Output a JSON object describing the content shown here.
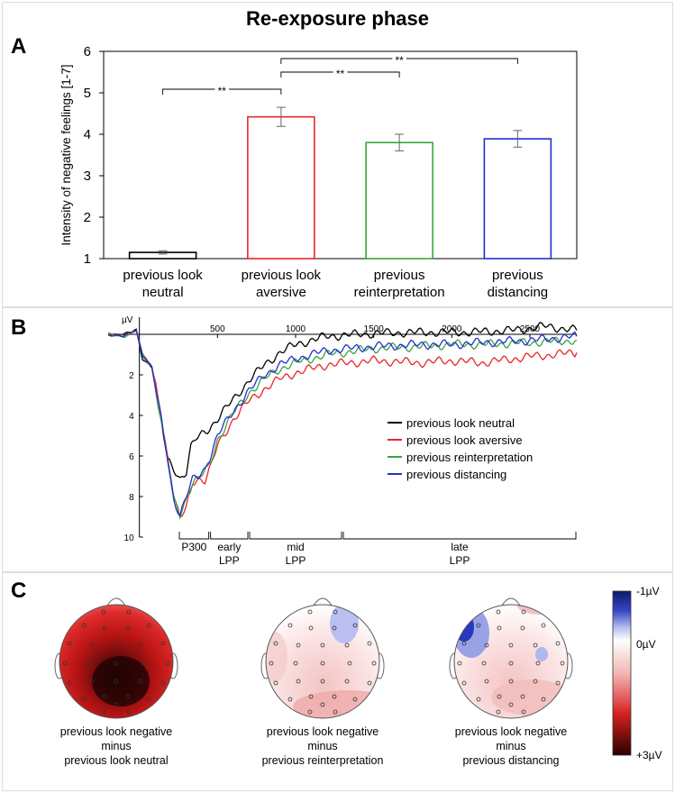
{
  "title": "Re-exposure phase",
  "panels": {
    "a": "A",
    "b": "B",
    "c": "C"
  },
  "panel_a": {
    "chart_data": {
      "type": "bar",
      "categories": [
        [
          "previous look",
          "neutral"
        ],
        [
          "previous look",
          "aversive"
        ],
        [
          "previous",
          "reinterpretation"
        ],
        [
          "previous",
          "distancing"
        ]
      ],
      "values": [
        1.15,
        4.42,
        3.8,
        3.89
      ],
      "errors": [
        0.04,
        0.23,
        0.2,
        0.2
      ],
      "colors": [
        "#000000",
        "#e8262a",
        "#3aa63a",
        "#2230d0"
      ],
      "ylabel": "Intensity of negative feelings [1-7]",
      "ylim": [
        1,
        6
      ],
      "yticks": [
        "1",
        "2",
        "3",
        "4",
        "5",
        "6"
      ],
      "significance": [
        {
          "from": 0,
          "to": 1,
          "label": "**"
        },
        {
          "from": 1,
          "to": 2,
          "label": "**"
        },
        {
          "from": 1,
          "to": 3,
          "label": "**"
        }
      ]
    }
  },
  "panel_b": {
    "chart_data": {
      "type": "line",
      "yunit": "µV",
      "yticks": [
        "2",
        "4",
        "6",
        "8",
        "10"
      ],
      "xticks": [
        "500",
        "1000",
        "1500",
        "2000",
        "2500"
      ],
      "xrange": [
        -200,
        2800
      ],
      "yrange": [
        -0.8,
        10
      ],
      "series": [
        {
          "name": "previous look neutral",
          "color": "#000000",
          "points": [
            [
              -200,
              0
            ],
            [
              -100,
              0
            ],
            [
              -20,
              -0.2
            ],
            [
              20,
              1.2
            ],
            [
              80,
              1.6
            ],
            [
              130,
              3.8
            ],
            [
              180,
              6.2
            ],
            [
              220,
              6.6
            ],
            [
              260,
              7.1
            ],
            [
              300,
              6.8
            ],
            [
              330,
              5.6
            ],
            [
              360,
              5.2
            ],
            [
              400,
              4.9
            ],
            [
              450,
              4.6
            ],
            [
              500,
              4.2
            ],
            [
              600,
              3.2
            ],
            [
              700,
              2.3
            ],
            [
              800,
              1.5
            ],
            [
              900,
              0.9
            ],
            [
              1000,
              0.5
            ],
            [
              1200,
              0.1
            ],
            [
              1500,
              -0.05
            ],
            [
              1800,
              -0.1
            ],
            [
              2100,
              -0.1
            ],
            [
              2400,
              -0.2
            ],
            [
              2600,
              -0.4
            ],
            [
              2700,
              -0.3
            ],
            [
              2800,
              -0.2
            ]
          ]
        },
        {
          "name": "previous look aversive",
          "color": "#e8262a",
          "points": [
            [
              -200,
              0
            ],
            [
              -100,
              0.1
            ],
            [
              -20,
              -0.2
            ],
            [
              20,
              1.0
            ],
            [
              80,
              1.6
            ],
            [
              130,
              3.6
            ],
            [
              180,
              6.0
            ],
            [
              220,
              8.0
            ],
            [
              260,
              9.1
            ],
            [
              300,
              8.6
            ],
            [
              340,
              7.3
            ],
            [
              380,
              7.1
            ],
            [
              420,
              7.2
            ],
            [
              460,
              6.5
            ],
            [
              500,
              5.5
            ],
            [
              600,
              4.2
            ],
            [
              700,
              3.3
            ],
            [
              800,
              2.7
            ],
            [
              900,
              2.2
            ],
            [
              1000,
              1.9
            ],
            [
              1200,
              1.5
            ],
            [
              1500,
              1.3
            ],
            [
              1800,
              1.4
            ],
            [
              2000,
              1.3
            ],
            [
              2200,
              1.4
            ],
            [
              2500,
              1.1
            ],
            [
              2800,
              0.9
            ]
          ]
        },
        {
          "name": "previous reinterpretation",
          "color": "#3aa63a",
          "points": [
            [
              -200,
              0
            ],
            [
              -100,
              0.1
            ],
            [
              -20,
              -0.2
            ],
            [
              20,
              1.0
            ],
            [
              80,
              1.6
            ],
            [
              130,
              3.8
            ],
            [
              180,
              6.2
            ],
            [
              220,
              8.2
            ],
            [
              260,
              8.9
            ],
            [
              300,
              8.1
            ],
            [
              340,
              7.3
            ],
            [
              380,
              7.1
            ],
            [
              420,
              6.8
            ],
            [
              460,
              6.2
            ],
            [
              500,
              5.2
            ],
            [
              600,
              3.9
            ],
            [
              700,
              2.9
            ],
            [
              800,
              2.2
            ],
            [
              900,
              1.7
            ],
            [
              1000,
              1.4
            ],
            [
              1200,
              1.0
            ],
            [
              1500,
              0.7
            ],
            [
              1800,
              0.6
            ],
            [
              2000,
              0.5
            ],
            [
              2200,
              0.5
            ],
            [
              2500,
              0.4
            ],
            [
              2800,
              0.3
            ]
          ]
        },
        {
          "name": "previous distancing",
          "color": "#2230d0",
          "points": [
            [
              -200,
              0
            ],
            [
              -100,
              0.1
            ],
            [
              -20,
              -0.2
            ],
            [
              20,
              1.0
            ],
            [
              80,
              1.6
            ],
            [
              130,
              3.8
            ],
            [
              180,
              6.1
            ],
            [
              220,
              8.1
            ],
            [
              260,
              8.9
            ],
            [
              300,
              8.0
            ],
            [
              340,
              7.2
            ],
            [
              380,
              7.0
            ],
            [
              420,
              6.6
            ],
            [
              460,
              5.9
            ],
            [
              500,
              5.0
            ],
            [
              600,
              3.8
            ],
            [
              700,
              2.8
            ],
            [
              800,
              2.0
            ],
            [
              900,
              1.5
            ],
            [
              1000,
              1.2
            ],
            [
              1200,
              0.8
            ],
            [
              1500,
              0.6
            ],
            [
              1800,
              0.5
            ],
            [
              2000,
              0.5
            ],
            [
              2200,
              0.4
            ],
            [
              2500,
              0.3
            ],
            [
              2800,
              0.1
            ]
          ]
        }
      ],
      "windows": [
        {
          "label": [
            "P300"
          ],
          "from": 250,
          "to": 450
        },
        {
          "label": [
            "early",
            "LPP"
          ],
          "from": 450,
          "to": 700
        },
        {
          "label": [
            "mid",
            "LPP"
          ],
          "from": 700,
          "to": 1300
        },
        {
          "label": [
            "late",
            "LPP"
          ],
          "from": 1300,
          "to": 2800
        }
      ]
    }
  },
  "panel_c": {
    "maps": [
      {
        "caption": [
          "previous look negative",
          "minus",
          "previous look neutral"
        ]
      },
      {
        "caption": [
          "previous look negative",
          "minus",
          "previous reinterpretation"
        ]
      },
      {
        "caption": [
          "previous look negative",
          "minus",
          "previous distancing"
        ]
      }
    ],
    "colorbar": {
      "labels": [
        "-1µV",
        "0µV",
        "+3µV"
      ]
    }
  }
}
